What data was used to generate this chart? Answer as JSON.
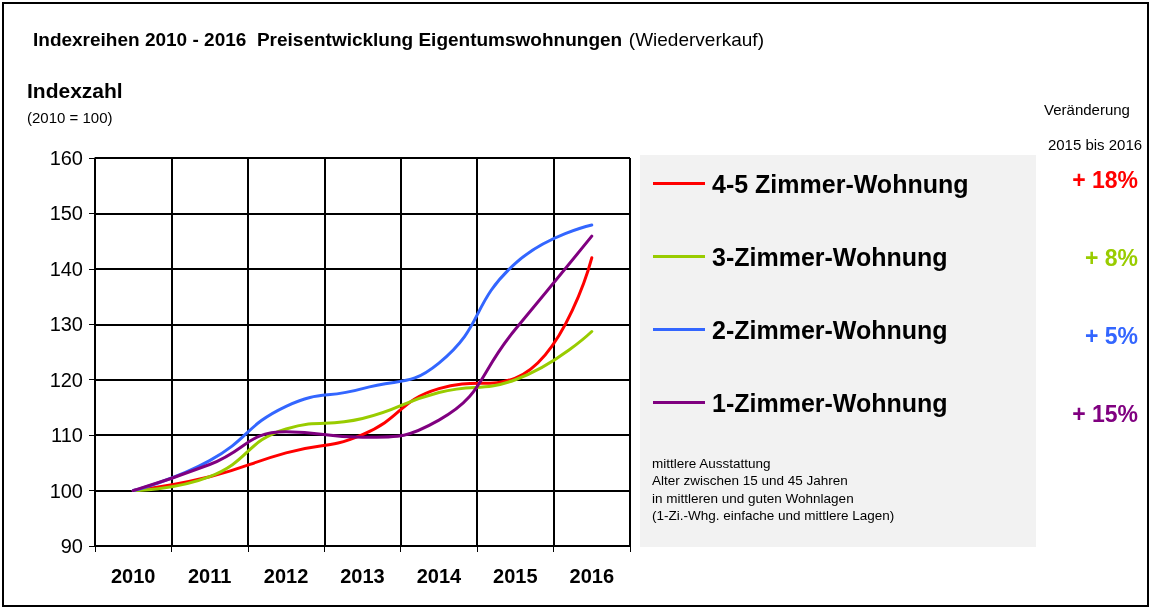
{
  "chart_data": {
    "type": "line",
    "title": "Indexreihen 2010 - 2016  Preisentwicklung Eigentumswohnungen",
    "subtitle": "(Wiederverkauf)",
    "ylabel": "Indexzahl",
    "categories": [
      "2010",
      "2011",
      "2012",
      "2013",
      "2014",
      "2015",
      "2016"
    ],
    "series": [
      {
        "name": "4-5 Zimmer-Wohnung",
        "color": "#ff0000",
        "values": [
          100,
          102.5,
          106.8,
          110.1,
          118.4,
          120.3,
          142
        ]
      },
      {
        "name": "3-Zimmer-Wohnung",
        "color": "#99cc00",
        "values": [
          100,
          102.5,
          111.1,
          113,
          117.7,
          120,
          128.7
        ]
      },
      {
        "name": "2-Zimmer-Wohnung",
        "color": "#3366ff",
        "values": [
          100,
          105.4,
          115.2,
          118.4,
          123,
          141,
          147.9
        ]
      },
      {
        "name": "1-Zimmer-Wohnung",
        "color": "#800080",
        "values": [
          100,
          104.7,
          110.6,
          109.6,
          112.7,
          129.1,
          145.9
        ]
      }
    ],
    "ylim": [
      90,
      160
    ],
    "yticks": [
      90,
      100,
      110,
      120,
      130,
      140,
      150,
      160
    ],
    "grid": true,
    "legend": "right",
    "marker": "none",
    "line_style": "solid",
    "annotations": [
      "(2010 = 100)",
      "Veränderung",
      "2015 bis 2016",
      "+ 18%",
      "+ 8%",
      "+ 5%",
      "+ 15%",
      "mittlere Ausstattung",
      "Alter zwischen 15 und 45 Jahren",
      "in mittleren und guten Wohnlagen",
      "(1-Zi.-Whg. einfache und mittlere Lagen)"
    ]
  }
}
